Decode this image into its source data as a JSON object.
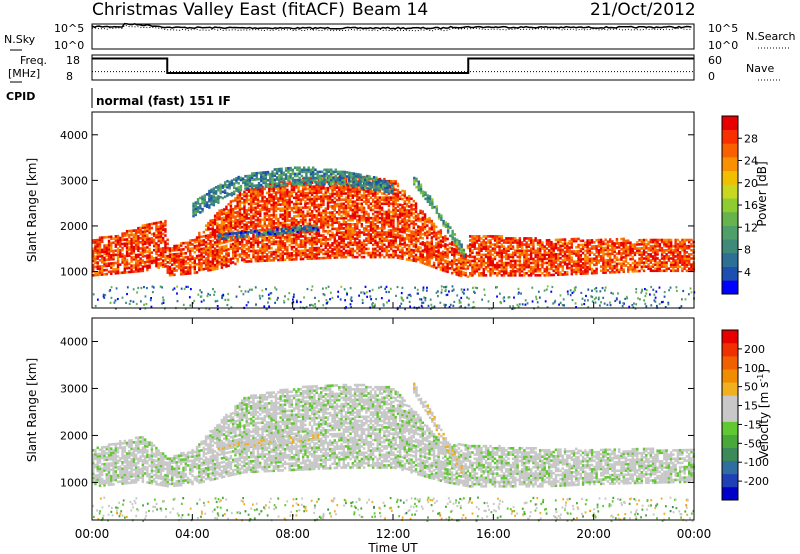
{
  "header": {
    "title": "Christmas Valley East (fitACF)",
    "beam": "Beam 14",
    "date": "21/Oct/2012"
  },
  "top_panels": {
    "nsky_label": "N.Sky",
    "nsky_ticks": [
      "10^5",
      "10^0"
    ],
    "nsearch_label": "N.Search",
    "nsearch_ticks": [
      "10^5",
      "10^0"
    ],
    "freq_label_1": "Freq.",
    "freq_label_2": "[MHz]",
    "freq_ticks": [
      "18",
      "8"
    ],
    "nave_label": "Nave",
    "nave_ticks": [
      "60",
      "0"
    ],
    "cpid_label": "CPID",
    "cpid_text": "normal (fast) 151 IF"
  },
  "colors": {
    "power_scale": [
      "#0000ff",
      "#1c4fb0",
      "#2e6f95",
      "#3f8a78",
      "#4f9f6a",
      "#68b44c",
      "#8fcc30",
      "#c8d820",
      "#f0c000",
      "#f89000",
      "#f86000",
      "#f83000",
      "#e80000"
    ],
    "velocity_scale": [
      "#0000c8",
      "#2040b8",
      "#2e6fa0",
      "#3c8a5a",
      "#4aa83a",
      "#60c830",
      "#c8c8c8",
      "#c8c8c8",
      "#f0b020",
      "#f08c00",
      "#f06000",
      "#f03000",
      "#e80000"
    ],
    "ground_scatter": "#c0c0b8"
  },
  "chart_data": [
    {
      "type": "line",
      "title": "Christmas Valley East (fitACF)",
      "xlabel": "Time UT",
      "x_ticks": [
        "00:00",
        "04:00",
        "08:00",
        "12:00",
        "16:00",
        "20:00",
        "00:00"
      ],
      "series": [
        {
          "name": "N.Sky",
          "scale": "log",
          "x_hours": [
            0,
            1.2,
            1.3,
            3,
            8,
            14,
            14.4,
            15,
            20,
            24
          ],
          "values": [
            30000,
            30000,
            100000,
            20000,
            15000,
            15000,
            25000,
            25000,
            20000,
            25000
          ]
        },
        {
          "name": "Freq.",
          "ylim": [
            8,
            18
          ],
          "x_hours": [
            0,
            3,
            3,
            15,
            15,
            24
          ],
          "values": [
            16.6,
            16.6,
            10.8,
            10.8,
            16.6,
            16.6
          ]
        },
        {
          "name": "Nave",
          "ylim": [
            0,
            60
          ],
          "x_hours": [
            0,
            24
          ],
          "values": [
            20,
            20
          ]
        }
      ]
    },
    {
      "type": "heatmap",
      "ylabel": "Slant Range [km]",
      "ylim": [
        200,
        4500
      ],
      "y_ticks": [
        "1000",
        "2000",
        "3000",
        "4000"
      ],
      "colorbar_label": "Power [dB]",
      "colorbar_ticks": [
        "4",
        "8",
        "12",
        "16",
        "20",
        "24",
        "28"
      ],
      "colorbar_range": [
        0,
        30
      ],
      "scatter_bands": [
        {
          "x_hours": [
            0,
            1,
            2,
            2.9,
            3,
            4,
            5,
            6,
            8,
            10,
            12,
            13,
            14,
            14.9,
            15,
            18,
            20,
            22,
            24
          ],
          "range_km_low": [
            900,
            950,
            1000,
            1100,
            900,
            950,
            1050,
            1200,
            1250,
            1300,
            1300,
            1200,
            1000,
            850,
            900,
            900,
            950,
            1000,
            1000
          ],
          "range_km_high": [
            1700,
            1800,
            2000,
            2100,
            1500,
            1700,
            2300,
            2800,
            3000,
            3100,
            3000,
            2400,
            1800,
            1400,
            1800,
            1700,
            1700,
            1700,
            1700
          ],
          "power_db": 26
        },
        {
          "x_hours": [
            4,
            5,
            6,
            8,
            10,
            11,
            12
          ],
          "range_km_low": [
            2200,
            2500,
            2800,
            2900,
            2900,
            2800,
            2700
          ],
          "range_km_high": [
            2500,
            2900,
            3100,
            3300,
            3200,
            3100,
            2900
          ],
          "power_db": 8
        },
        {
          "x_hours": [
            5,
            6,
            7,
            8,
            9
          ],
          "range_km_low": [
            1700,
            1750,
            1800,
            1850,
            1900
          ],
          "range_km_high": [
            1800,
            1850,
            1900,
            1950,
            2000
          ],
          "power_db": 6
        },
        {
          "x_hours": [
            12.8,
            13.5,
            14.2,
            14.8
          ],
          "range_km_low": [
            2900,
            2400,
            1800,
            1300
          ],
          "range_km_high": [
            3100,
            2600,
            2000,
            1500
          ],
          "power_db": 10
        }
      ]
    },
    {
      "type": "heatmap",
      "ylabel": "Slant Range [km]",
      "xlabel": "Time UT",
      "ylim": [
        200,
        4500
      ],
      "y_ticks": [
        "1000",
        "2000",
        "3000",
        "4000"
      ],
      "colorbar_label": "Velocity [m s",
      "colorbar_label_sup": "-1",
      "colorbar_label_close": "]",
      "colorbar_ticks": [
        "200",
        "100",
        "50",
        "15",
        "-15",
        "-50",
        "-100",
        "-200"
      ],
      "colorbar_range": [
        -250,
        250
      ],
      "scatter_bands": [
        {
          "x_hours": [
            0,
            2,
            3,
            4,
            6,
            8,
            10,
            12,
            14,
            15,
            18,
            20,
            24
          ],
          "range_km_low": [
            900,
            1000,
            900,
            950,
            1200,
            1250,
            1300,
            1300,
            1000,
            900,
            900,
            950,
            1000
          ],
          "range_km_high": [
            1700,
            2000,
            1500,
            1700,
            2800,
            3000,
            3100,
            3000,
            1800,
            1800,
            1700,
            1700,
            1700
          ],
          "velocity_ms": 0
        },
        {
          "x_hours": [
            12.8,
            13.5,
            14.2,
            14.8
          ],
          "range_km_low": [
            2900,
            2300,
            1600,
            1100
          ],
          "range_km_high": [
            3100,
            2500,
            1800,
            1300
          ],
          "velocity_ms": 40
        },
        {
          "x_hours": [
            5,
            6,
            7,
            8,
            9
          ],
          "range_km_low": [
            1700,
            1750,
            1800,
            1850,
            1900
          ],
          "range_km_high": [
            1800,
            1850,
            1900,
            1950,
            2000
          ],
          "velocity_ms": 40
        }
      ]
    }
  ]
}
